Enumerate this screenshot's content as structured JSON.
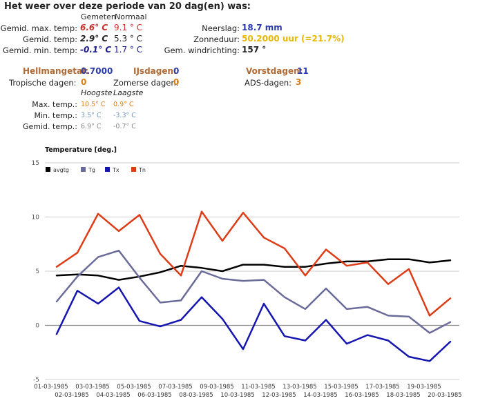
{
  "title": "Het weer over deze periode van 20 dag(en) was:",
  "cols": {
    "gemeten": "Gemeten",
    "normaal": "Normaal"
  },
  "stats": {
    "max_label": "Gemid. max. temp:",
    "max_meas": "6.6° C",
    "max_norm": "9.1 ° C",
    "gem_label": "Gemid. temp:",
    "gem_meas": "2.9° C",
    "gem_norm": "5.3 ° C",
    "min_label": "Gemid. min. temp:",
    "min_meas": "-0.1° C",
    "min_norm": "1.7 ° C",
    "neer_label": "Neerslag:",
    "neer_val": "18.7 mm",
    "zon_label": "Zonneduur:",
    "zon_val": "50.2000 uur (=21.7%)",
    "wind_label": "Gem. windrichting:",
    "wind_val": "157 °"
  },
  "counts": {
    "hellmann_label": "Hellmangetal:",
    "hellmann_val": "0.7000",
    "ijs_label": "IJsdagen:",
    "ijs_val": "0",
    "vorst_label": "Vorstdagen:",
    "vorst_val": "11",
    "trop_label": "Tropische dagen:",
    "trop_val": "0",
    "zomer_label": "Zomerse dagen:",
    "zomer_val": "0",
    "ads_label": "ADS-dagen:",
    "ads_val": "3"
  },
  "extremes": {
    "h_hoogste": "Hoogste",
    "h_laagste": "Laagste",
    "max_label": "Max. temp.:",
    "max_hi": "10.5° C",
    "max_lo": "0.9° C",
    "min_label": "Min. temp.:",
    "min_hi": "3.5° C",
    "min_lo": "-3.3° C",
    "gem_label": "Gemid. temp.:",
    "gem_hi": "6.9° C",
    "gem_lo": "-0.7° C"
  },
  "colors": {
    "red": "#c8302a",
    "blue": "#2a3aa8",
    "navy": "#1a1a8c",
    "orange": "#e07d10",
    "brown": "#b06a34",
    "gold": "#e8b800",
    "steel": "#6f95c0",
    "gray": "#888888",
    "grid": "#cfcfcf",
    "zero": "#888888"
  },
  "chart_data": {
    "type": "line",
    "title": "Temperature [deg.]",
    "ylim": [
      -5,
      15
    ],
    "yticks": [
      -5,
      0,
      5,
      10,
      15
    ],
    "grid": true,
    "legend_position": "top-left",
    "x": [
      "01-03-1985",
      "02-03-1985",
      "03-03-1985",
      "04-03-1985",
      "05-03-1985",
      "06-03-1985",
      "07-03-1985",
      "08-03-1985",
      "09-03-1985",
      "10-03-1985",
      "11-03-1985",
      "12-03-1985",
      "13-03-1985",
      "14-03-1985",
      "15-03-1985",
      "16-03-1985",
      "17-03-1985",
      "18-03-1985",
      "19-03-1985",
      "20-03-1985"
    ],
    "series": [
      {
        "name": "avgtg",
        "color": "#000000",
        "width": 2.5,
        "values": [
          4.6,
          4.7,
          4.6,
          4.2,
          4.5,
          4.9,
          5.5,
          5.3,
          5.0,
          5.6,
          5.6,
          5.4,
          5.4,
          5.7,
          5.9,
          5.9,
          6.1,
          6.1,
          5.8,
          6.0
        ]
      },
      {
        "name": "Tg",
        "color": "#6b6b9a",
        "width": 2.5,
        "values": [
          2.2,
          4.5,
          6.3,
          6.9,
          4.4,
          2.1,
          2.3,
          5.0,
          4.3,
          4.1,
          4.2,
          2.6,
          1.5,
          3.4,
          1.5,
          1.7,
          0.9,
          0.8,
          -0.7,
          0.3
        ]
      },
      {
        "name": "Tx",
        "color": "#1515b0",
        "width": 2.5,
        "values": [
          -0.8,
          3.2,
          2.0,
          3.5,
          0.4,
          -0.1,
          0.5,
          2.6,
          0.6,
          -2.2,
          2.0,
          -1.0,
          -1.4,
          0.5,
          -1.7,
          -0.9,
          -1.4,
          -2.9,
          -3.3,
          -1.5
        ]
      },
      {
        "name": "Tn",
        "color": "#dd3c17",
        "width": 2.5,
        "values": [
          5.4,
          6.7,
          10.3,
          8.7,
          10.2,
          6.6,
          4.6,
          10.5,
          7.8,
          10.4,
          8.1,
          7.1,
          4.6,
          7.0,
          5.5,
          5.8,
          3.8,
          5.2,
          0.9,
          2.5
        ]
      }
    ]
  }
}
